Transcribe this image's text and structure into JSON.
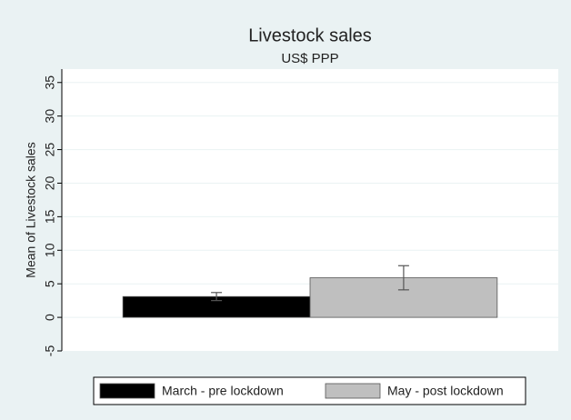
{
  "chart_data": {
    "type": "bar",
    "title": "Livestock sales",
    "subtitle": "US$ PPP",
    "y_label": "Mean of Livestock sales",
    "series": [
      {
        "name": "March - pre lockdown",
        "color": "#000000",
        "values": [
          3.1
        ],
        "errors": [
          0.6
        ]
      },
      {
        "name": "May - post lockdown",
        "color": "#bfbfbf",
        "values": [
          5.9
        ],
        "errors": [
          1.8
        ]
      }
    ],
    "ylim": [
      -5,
      37
    ],
    "yticks": [
      -5,
      0,
      5,
      10,
      15,
      20,
      25,
      30,
      35
    ],
    "grid": true,
    "legend": "bottom"
  }
}
